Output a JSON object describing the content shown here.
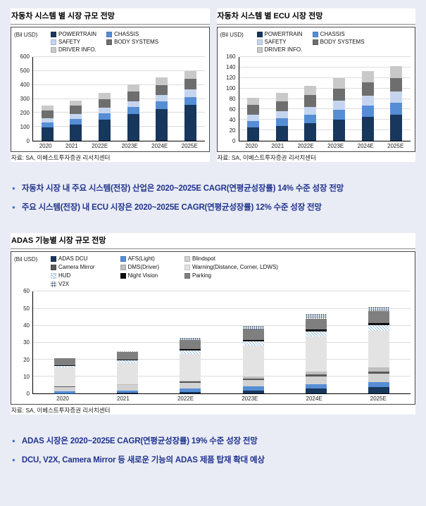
{
  "page": {
    "bullet_marker": "●"
  },
  "colors": {
    "page_bg": "#E9ECF5",
    "bullet_text": "#20338F",
    "bullet_marker": "#4472C4",
    "card_border": "#4A4A4A",
    "grid_line": "#DCDCDC"
  },
  "bullets_top": [
    "자동차 시장 내 주요 시스템(전장) 산업은 2020~2025E CAGR(연평균성장률) 14% 수준 성장 전망",
    "주요 시스템(전장) 내 ECU 시장은 2020~2025E CAGR(연평균성장률) 12% 수준 성장 전망"
  ],
  "bullets_bottom": [
    "ADAS 시장은 2020~2025E CAGR(연평균성장률) 19% 수준 성장 전망",
    "DCU, V2X, Camera Mirror 등 새로운 기능의 ADAS 제품 탑재 확대 예상"
  ],
  "chart_data": [
    {
      "type": "bar",
      "stacked": true,
      "title": "자동차 시스템 별 시장 규모 전망",
      "unit_label": "(Bil USD)",
      "source": "자료: SA, 이베스트투자증권 리서치센터",
      "categories": [
        "2020",
        "2021",
        "2022E",
        "2023E",
        "2024E",
        "2025E"
      ],
      "ylim": [
        0,
        600
      ],
      "ytick": 100,
      "legend_columns": 2,
      "legend_position": "top",
      "grid": true,
      "series": [
        {
          "name": "POWERTRAIN",
          "color": "#17375D",
          "style": "solid",
          "values": [
            95,
            115,
            150,
            190,
            225,
            255
          ]
        },
        {
          "name": "CHASSIS",
          "color": "#558ED5",
          "style": "solid",
          "values": [
            35,
            40,
            45,
            50,
            55,
            60
          ]
        },
        {
          "name": "SAFETY",
          "color": "#C5D5F0",
          "style": "solid",
          "values": [
            30,
            35,
            40,
            45,
            50,
            55
          ]
        },
        {
          "name": "BODY SYSTEMS",
          "color": "#6E6E6E",
          "style": "solid",
          "values": [
            55,
            60,
            65,
            70,
            70,
            75
          ]
        },
        {
          "name": "DRIVER INFO.",
          "color": "#C9C9C9",
          "style": "solid",
          "values": [
            35,
            40,
            45,
            50,
            55,
            55
          ]
        }
      ]
    },
    {
      "type": "bar",
      "stacked": true,
      "title": "자동차 시스템 별 ECU 시장 전망",
      "unit_label": "(Bil USD)",
      "source": "자료: SA, 이베스트투자증권 리서치센터",
      "categories": [
        "2020",
        "2021",
        "2022E",
        "2023E",
        "2024E",
        "2025E"
      ],
      "ylim": [
        0,
        160
      ],
      "ytick": 20,
      "legend_columns": 2,
      "legend_position": "top",
      "grid": true,
      "series": [
        {
          "name": "POWERTRAIN",
          "color": "#17375D",
          "style": "solid",
          "values": [
            25,
            28,
            33,
            40,
            46,
            50
          ]
        },
        {
          "name": "CHASSIS",
          "color": "#558ED5",
          "style": "solid",
          "values": [
            13,
            15,
            17,
            19,
            21,
            23
          ]
        },
        {
          "name": "SAFETY",
          "color": "#C5D5F0",
          "style": "solid",
          "values": [
            12,
            13,
            15,
            17,
            19,
            21
          ]
        },
        {
          "name": "BODY SYSTEMS",
          "color": "#6E6E6E",
          "style": "solid",
          "values": [
            18,
            20,
            22,
            24,
            25,
            26
          ]
        },
        {
          "name": "DRIVER INFO.",
          "color": "#C9C9C9",
          "style": "solid",
          "values": [
            14,
            16,
            18,
            20,
            22,
            23
          ]
        }
      ]
    },
    {
      "type": "bar",
      "stacked": true,
      "title": "ADAS 기능별 시장 규모 전망",
      "unit_label": "(Bil USD)",
      "source": "자료: SA, 이베스트투자증권 리서치센터",
      "categories": [
        "2020",
        "2021",
        "2022E",
        "2023E",
        "2024E",
        "2025E"
      ],
      "ylim": [
        0,
        60
      ],
      "ytick": 10,
      "legend_columns": 3,
      "legend_position": "top",
      "grid": true,
      "series": [
        {
          "name": "ADAS DCU",
          "color": "#17375D",
          "style": "solid",
          "values": [
            0.2,
            0.4,
            1.0,
            2.0,
            3.0,
            4.0
          ]
        },
        {
          "name": "AFS(Light)",
          "color": "#558ED5",
          "style": "solid",
          "values": [
            1.3,
            1.6,
            2.0,
            2.2,
            2.5,
            2.6
          ]
        },
        {
          "name": "Blindspot",
          "color": "#D2D2D2",
          "style": "solid",
          "values": [
            2.5,
            3.0,
            3.5,
            4.0,
            4.5,
            5.0
          ]
        },
        {
          "name": "Camera Mirror",
          "color": "#595959",
          "style": "solid",
          "values": [
            0.1,
            0.2,
            0.5,
            0.8,
            1.2,
            1.5
          ]
        },
        {
          "name": "DMS(Driver)",
          "color": "#BFBFBF",
          "style": "solid",
          "values": [
            0.2,
            0.4,
            0.8,
            1.2,
            1.8,
            2.2
          ]
        },
        {
          "name": "Warning(Distance, Corner, LDWS)",
          "color": "#E3E3E3",
          "style": "solid",
          "values": [
            11.0,
            12.5,
            15.5,
            18.0,
            20.5,
            21.5
          ]
        },
        {
          "name": "HUD",
          "color": "#9DC3E6",
          "style": "hatch",
          "values": [
            1.0,
            1.4,
            2.0,
            2.6,
            3.2,
            3.6
          ]
        },
        {
          "name": "Night Vision",
          "color": "#0D0D0D",
          "style": "solid",
          "values": [
            0.5,
            0.6,
            0.8,
            0.9,
            1.0,
            1.1
          ]
        },
        {
          "name": "Parking",
          "color": "#7F7F7F",
          "style": "solid",
          "values": [
            4.0,
            4.5,
            5.5,
            6.0,
            6.5,
            7.0
          ]
        },
        {
          "name": "V2X",
          "color": "#17375D",
          "style": "dots",
          "values": [
            0.2,
            0.4,
            1.4,
            2.3,
            2.8,
            2.5
          ]
        }
      ]
    }
  ]
}
